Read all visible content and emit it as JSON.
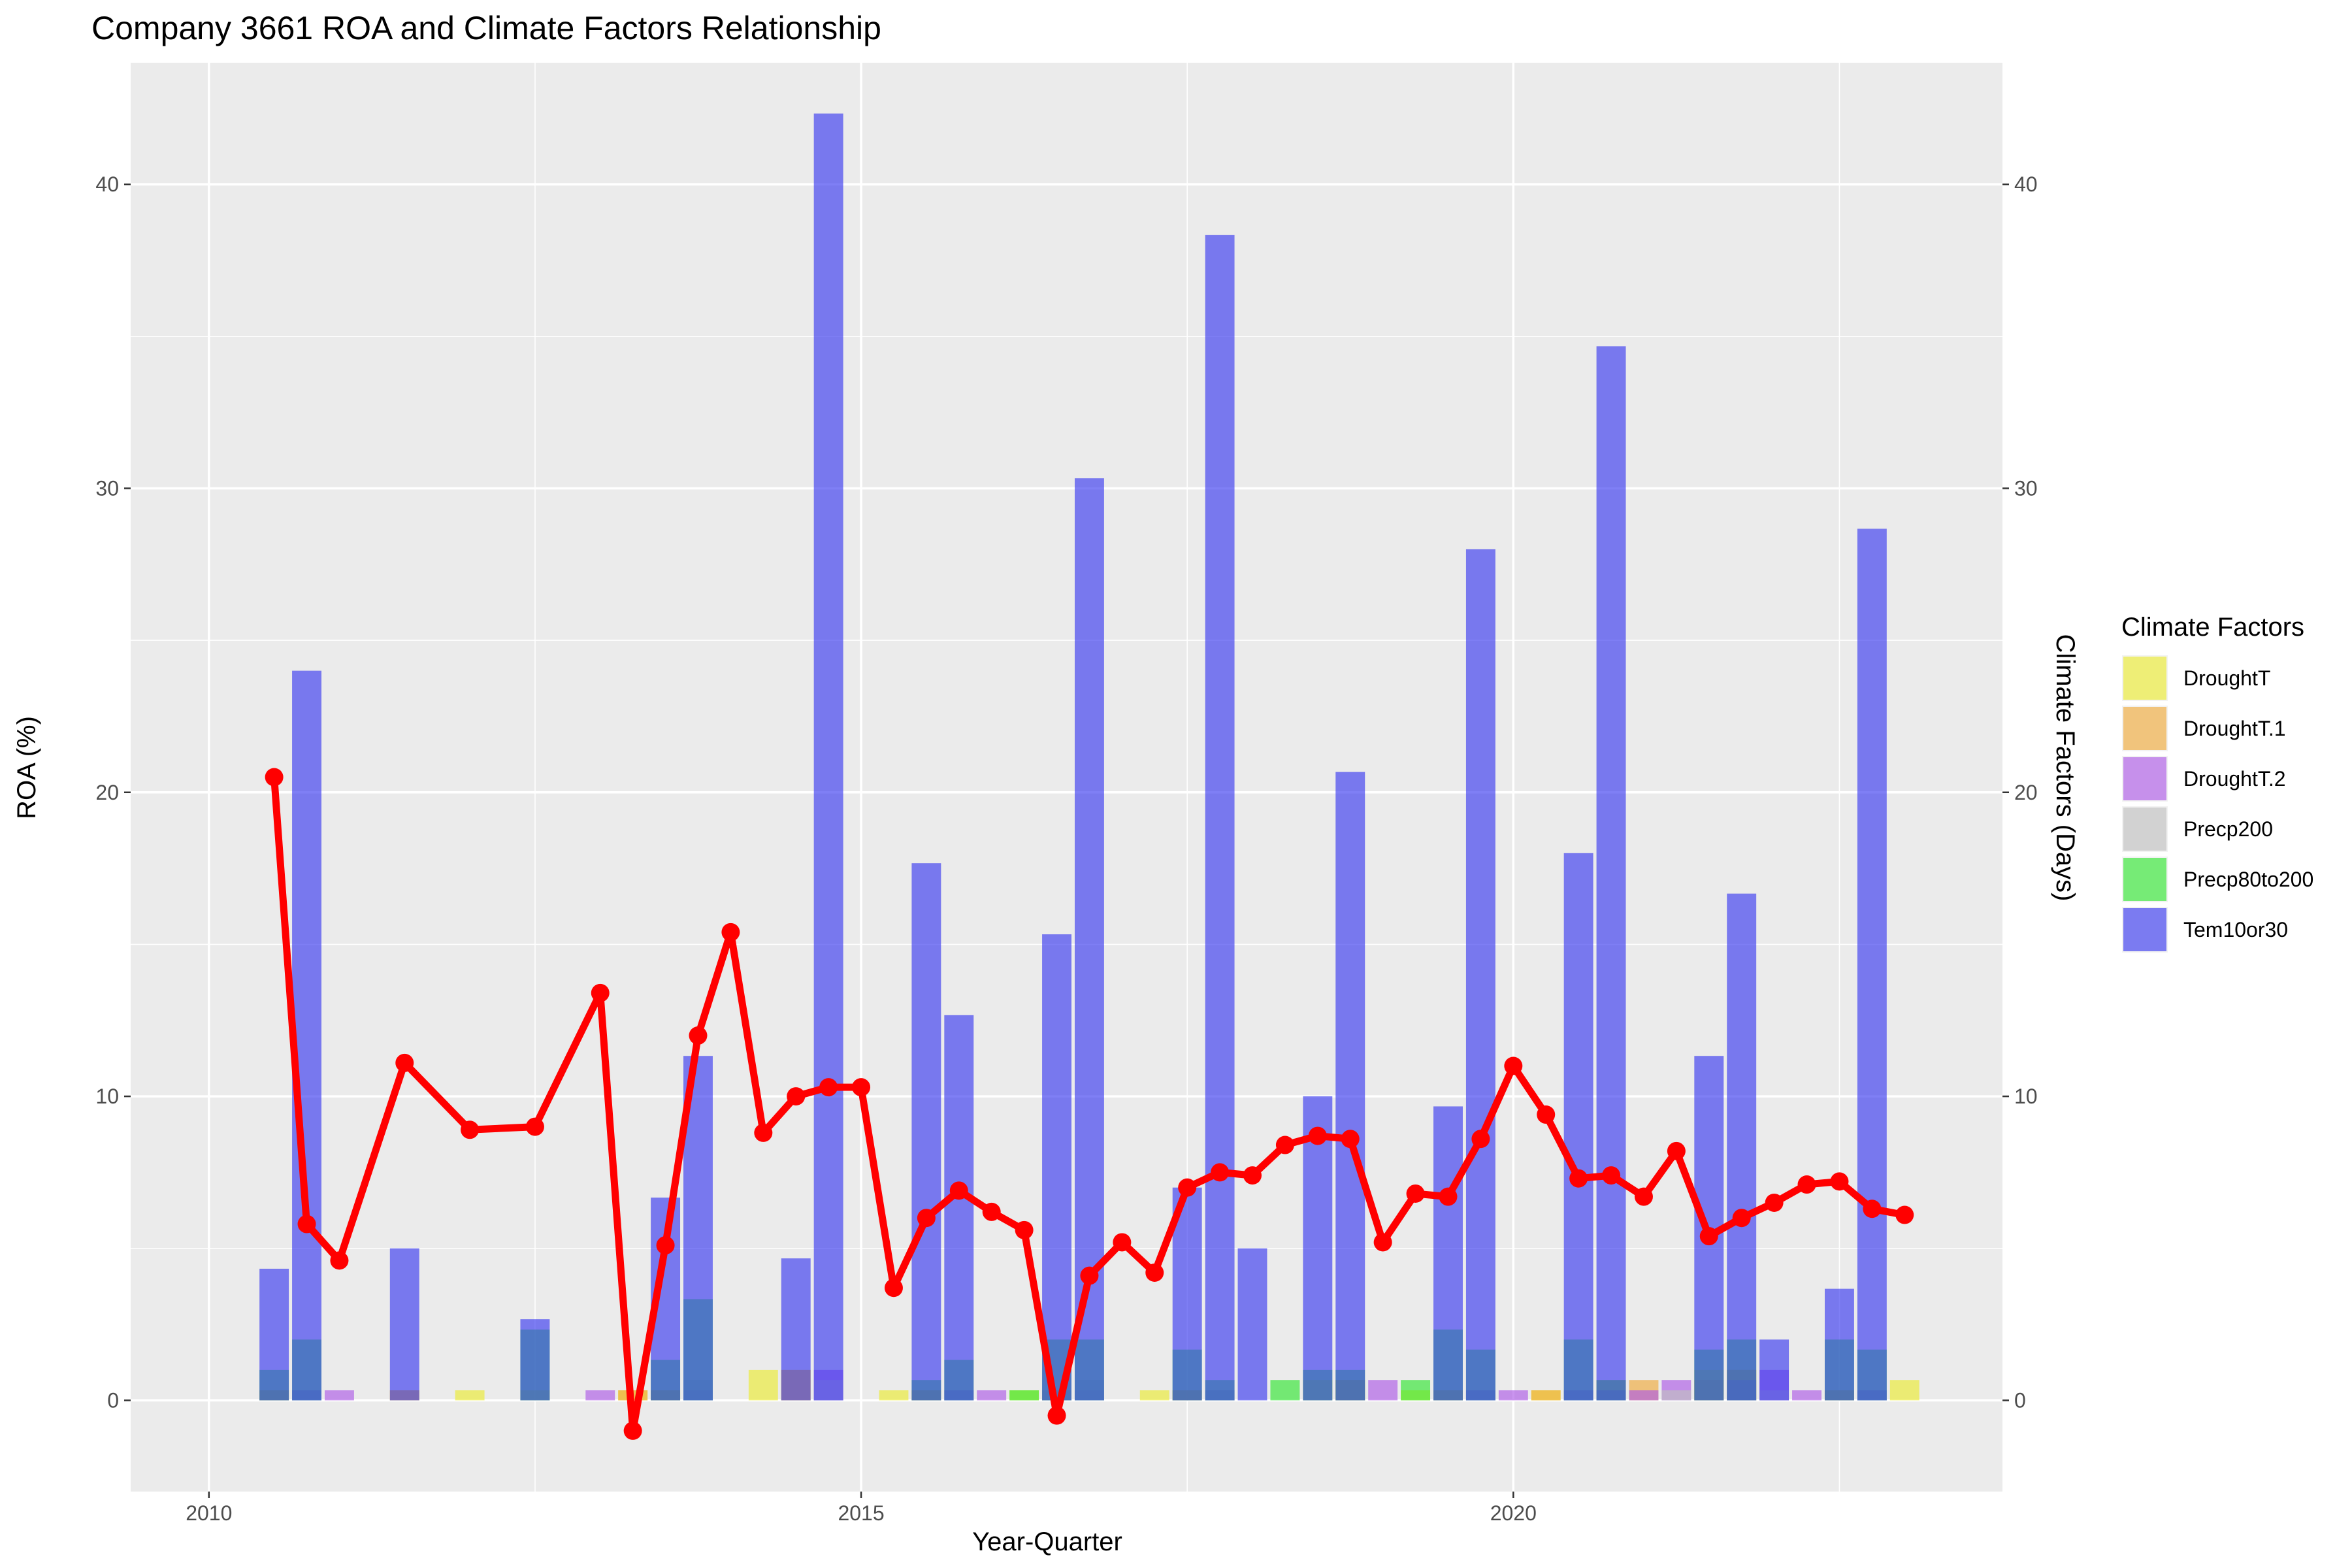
{
  "chart_data": {
    "type": "bar",
    "title": "Company 3661 ROA and Climate Factors Relationship",
    "xlabel": "Year-Quarter",
    "ylabel": "ROA (%)",
    "y2label": "Climate Factors (Days)",
    "xlim": [
      2009.4,
      2023.75
    ],
    "ylim": [
      -3,
      44
    ],
    "x_ticks": [
      2010,
      2015,
      2020
    ],
    "y_ticks": [
      0,
      10,
      20,
      30,
      40
    ],
    "grid": true,
    "legend": {
      "title": "Climate Factors",
      "position": "right"
    },
    "line_series": {
      "name": "ROA",
      "color": "#ff0000",
      "points": [
        [
          2010.5,
          20.5
        ],
        [
          2010.75,
          5.8
        ],
        [
          2011.0,
          4.6
        ],
        [
          2011.5,
          11.1
        ],
        [
          2012.0,
          8.9
        ],
        [
          2012.5,
          9.0
        ],
        [
          2013.0,
          13.4
        ],
        [
          2013.25,
          -1.0
        ],
        [
          2013.5,
          5.1
        ],
        [
          2013.75,
          12.0
        ],
        [
          2014.0,
          15.4
        ],
        [
          2014.25,
          8.8
        ],
        [
          2014.5,
          10.0
        ],
        [
          2014.75,
          10.3
        ],
        [
          2015.0,
          10.3
        ],
        [
          2015.25,
          3.7
        ],
        [
          2015.5,
          6.0
        ],
        [
          2015.75,
          6.9
        ],
        [
          2016.0,
          6.2
        ],
        [
          2016.25,
          5.6
        ],
        [
          2016.5,
          -0.5
        ],
        [
          2016.75,
          4.1
        ],
        [
          2017.0,
          5.2
        ],
        [
          2017.25,
          4.2
        ],
        [
          2017.5,
          7.0
        ],
        [
          2017.75,
          7.5
        ],
        [
          2018.0,
          7.4
        ],
        [
          2018.25,
          8.4
        ],
        [
          2018.5,
          8.7
        ],
        [
          2018.75,
          8.6
        ],
        [
          2019.0,
          5.2
        ],
        [
          2019.25,
          6.8
        ],
        [
          2019.5,
          6.7
        ],
        [
          2019.75,
          8.6
        ],
        [
          2020.0,
          11.0
        ],
        [
          2020.25,
          9.4
        ],
        [
          2020.5,
          7.3
        ],
        [
          2020.75,
          7.4
        ],
        [
          2021.0,
          6.7
        ],
        [
          2021.25,
          8.2
        ],
        [
          2021.5,
          5.4
        ],
        [
          2021.75,
          6.0
        ],
        [
          2022.0,
          6.5
        ],
        [
          2022.25,
          7.1
        ],
        [
          2022.5,
          7.2
        ],
        [
          2022.75,
          6.3
        ],
        [
          2023.0,
          6.1
        ]
      ]
    },
    "series": [
      {
        "name": "DroughtT",
        "color": "#ebeb33",
        "points": [
          [
            2010.5,
            0.33
          ],
          [
            2011.5,
            0.33
          ],
          [
            2012.0,
            0.33
          ],
          [
            2012.5,
            0.33
          ],
          [
            2013.25,
            0.33
          ],
          [
            2013.5,
            0.33
          ],
          [
            2014.25,
            1.0
          ],
          [
            2014.5,
            1.0
          ],
          [
            2015.25,
            0.33
          ],
          [
            2015.5,
            0.33
          ],
          [
            2016.25,
            0.33
          ],
          [
            2016.5,
            0.33
          ],
          [
            2017.25,
            0.33
          ],
          [
            2017.5,
            0.33
          ],
          [
            2018.5,
            0.67
          ],
          [
            2018.75,
            0.67
          ],
          [
            2019.25,
            0.33
          ],
          [
            2019.5,
            0.33
          ],
          [
            2020.25,
            0.33
          ],
          [
            2020.75,
            0.67
          ],
          [
            2021.5,
            1.0
          ],
          [
            2021.75,
            1.0
          ],
          [
            2022.5,
            0.33
          ],
          [
            2023.0,
            0.67
          ]
        ]
      },
      {
        "name": "DroughtT.1",
        "color": "#f0aa3c",
        "points": [
          [
            2010.5,
            0.33
          ],
          [
            2011.5,
            0.33
          ],
          [
            2013.25,
            0.33
          ],
          [
            2013.5,
            0.33
          ],
          [
            2014.5,
            1.0
          ],
          [
            2015.5,
            0.33
          ],
          [
            2016.5,
            0.33
          ],
          [
            2017.5,
            0.33
          ],
          [
            2018.75,
            0.67
          ],
          [
            2019.5,
            0.33
          ],
          [
            2020.25,
            0.33
          ],
          [
            2021.0,
            0.67
          ],
          [
            2021.5,
            0.67
          ],
          [
            2021.75,
            1.0
          ],
          [
            2022.5,
            0.33
          ]
        ]
      },
      {
        "name": "DroughtT.2",
        "color": "#ad5be6",
        "points": [
          [
            2010.75,
            0.33
          ],
          [
            2011.0,
            0.33
          ],
          [
            2013.0,
            0.33
          ],
          [
            2013.75,
            0.33
          ],
          [
            2014.75,
            1.0
          ],
          [
            2015.75,
            0.33
          ],
          [
            2016.0,
            0.33
          ],
          [
            2016.75,
            0.33
          ],
          [
            2017.75,
            0.33
          ],
          [
            2019.0,
            0.67
          ],
          [
            2019.75,
            0.33
          ],
          [
            2020.0,
            0.33
          ],
          [
            2020.5,
            0.33
          ],
          [
            2020.75,
            0.33
          ],
          [
            2021.0,
            0.33
          ],
          [
            2021.25,
            0.67
          ],
          [
            2021.75,
            0.67
          ],
          [
            2022.0,
            1.0
          ],
          [
            2022.25,
            0.33
          ],
          [
            2022.75,
            0.33
          ]
        ]
      },
      {
        "name": "Precp200",
        "color": "#c0c0c0",
        "points": [
          [
            2013.75,
            0.67
          ],
          [
            2014.75,
            0.67
          ],
          [
            2016.5,
            0.33
          ],
          [
            2016.75,
            0.67
          ],
          [
            2017.75,
            0.33
          ],
          [
            2021.25,
            0.33
          ],
          [
            2022.0,
            0.33
          ]
        ]
      },
      {
        "name": "Precp80to200",
        "color": "#33e633",
        "points": [
          [
            2010.5,
            1.0
          ],
          [
            2010.75,
            2.0
          ],
          [
            2012.5,
            2.33
          ],
          [
            2013.5,
            1.33
          ],
          [
            2013.75,
            3.33
          ],
          [
            2015.5,
            0.67
          ],
          [
            2015.75,
            1.33
          ],
          [
            2016.25,
            0.33
          ],
          [
            2016.5,
            2.0
          ],
          [
            2016.75,
            2.0
          ],
          [
            2017.5,
            1.67
          ],
          [
            2017.75,
            0.67
          ],
          [
            2018.25,
            0.67
          ],
          [
            2018.5,
            1.0
          ],
          [
            2018.75,
            1.0
          ],
          [
            2019.25,
            0.67
          ],
          [
            2019.5,
            2.33
          ],
          [
            2019.75,
            1.67
          ],
          [
            2020.5,
            2.0
          ],
          [
            2020.75,
            0.67
          ],
          [
            2021.5,
            1.67
          ],
          [
            2021.75,
            2.0
          ],
          [
            2022.5,
            2.0
          ],
          [
            2022.75,
            1.67
          ]
        ]
      },
      {
        "name": "Tem10or30",
        "color": "#3b3bf0",
        "points": [
          [
            2010.5,
            4.33
          ],
          [
            2010.75,
            24.0
          ],
          [
            2011.5,
            5.0
          ],
          [
            2012.5,
            2.67
          ],
          [
            2013.5,
            6.67
          ],
          [
            2013.75,
            11.33
          ],
          [
            2014.5,
            4.67
          ],
          [
            2014.75,
            42.33
          ],
          [
            2015.5,
            17.67
          ],
          [
            2015.75,
            12.67
          ],
          [
            2016.5,
            15.33
          ],
          [
            2016.75,
            30.33
          ],
          [
            2017.5,
            7.0
          ],
          [
            2017.75,
            38.33
          ],
          [
            2018.0,
            5.0
          ],
          [
            2018.5,
            10.0
          ],
          [
            2018.75,
            20.67
          ],
          [
            2019.5,
            9.67
          ],
          [
            2019.75,
            28.0
          ],
          [
            2020.5,
            18.0
          ],
          [
            2020.75,
            34.67
          ],
          [
            2021.5,
            11.33
          ],
          [
            2021.75,
            16.67
          ],
          [
            2022.0,
            2.0
          ],
          [
            2022.5,
            3.67
          ],
          [
            2022.75,
            28.67
          ]
        ]
      }
    ]
  }
}
